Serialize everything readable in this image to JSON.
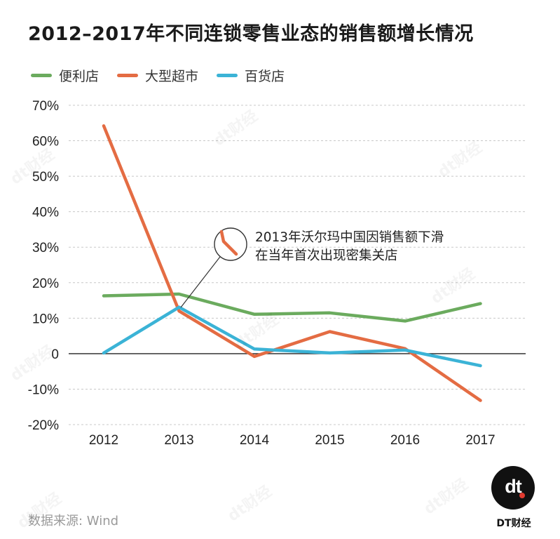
{
  "colors": {
    "convenience": "#6bab5e",
    "hypermarket": "#e46c43",
    "department": "#3bb3d6",
    "grid": "#c8c8c8",
    "axis": "#222222",
    "text": "#222222",
    "callout": "#333333"
  },
  "watermark_text": "dt财经",
  "source": "数据来源: Wind",
  "brand": {
    "mark": "dt",
    "name": "DT财经"
  },
  "annotation": {
    "line1": "2013年沃尔玛中国因销售额下滑",
    "line2": "在当年首次出现密集关店"
  },
  "chart_data": {
    "type": "line",
    "title": "2012–2017年不同连锁零售业态的销售额增长情况",
    "x": [
      "2012",
      "2013",
      "2014",
      "2015",
      "2016",
      "2017"
    ],
    "ylim": [
      -20,
      70
    ],
    "yticks": [
      -20,
      -10,
      0,
      10,
      20,
      30,
      40,
      50,
      60,
      70
    ],
    "ytick_labels": [
      "-20%",
      "-10%",
      "0",
      "10%",
      "20%",
      "30%",
      "40%",
      "50%",
      "60%",
      "70%"
    ],
    "grid": true,
    "legend_position": "top-left",
    "series": [
      {
        "name": "便利店",
        "key": "convenience",
        "values": [
          16.3,
          16.8,
          11.1,
          11.5,
          9.2,
          14.1
        ]
      },
      {
        "name": "大型超市",
        "key": "hypermarket",
        "values": [
          64.2,
          12.0,
          -0.8,
          6.2,
          1.4,
          -13.2
        ]
      },
      {
        "name": "百货店",
        "key": "department",
        "values": [
          0.2,
          13.1,
          1.3,
          0.2,
          1.0,
          -3.4
        ]
      }
    ]
  }
}
